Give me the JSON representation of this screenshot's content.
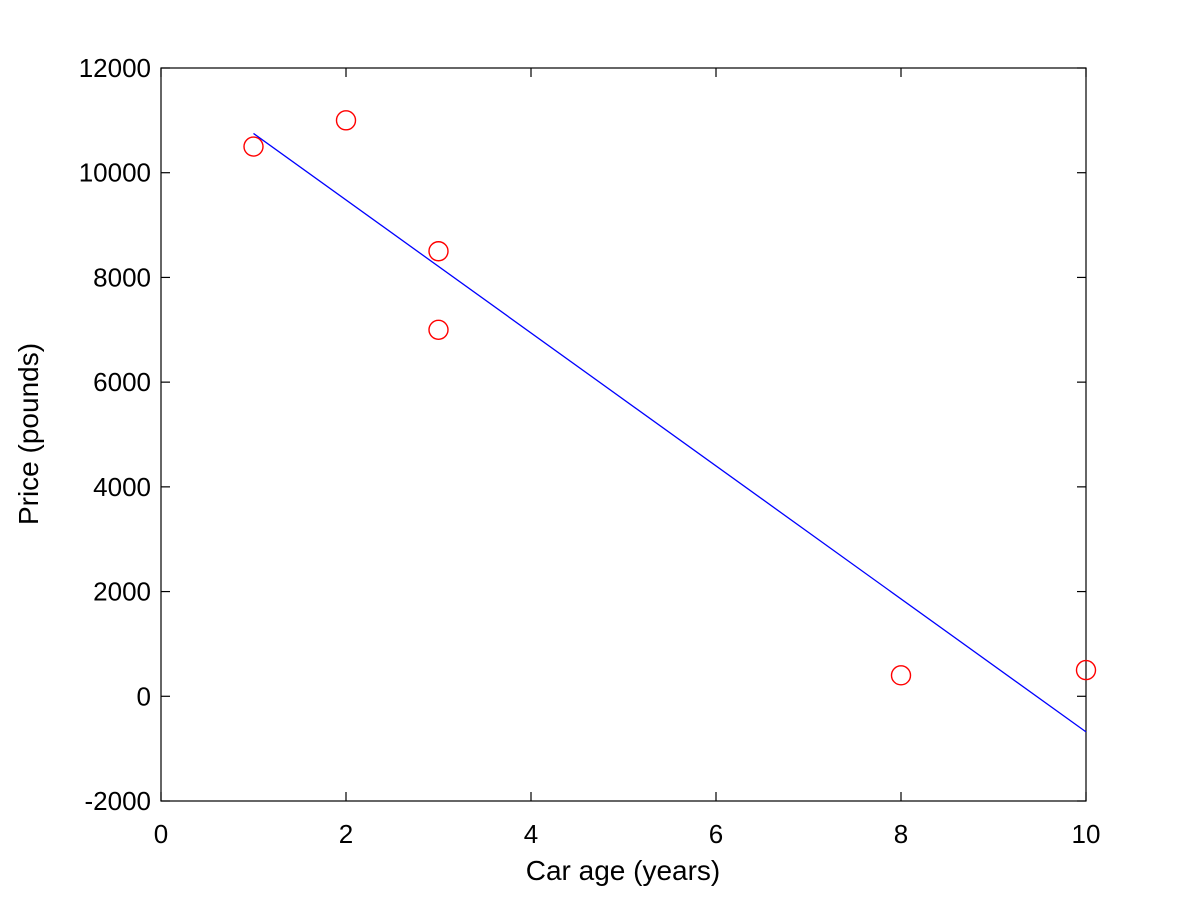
{
  "chart_data": {
    "type": "scatter",
    "title": "",
    "xlabel": "Car age (years)",
    "ylabel": "Price (pounds)",
    "xlim": [
      0,
      10
    ],
    "ylim": [
      -2000,
      12000
    ],
    "xticks": [
      0,
      2,
      4,
      6,
      8,
      10
    ],
    "xtick_labels": [
      "0",
      "2",
      "4",
      "6",
      "8",
      "10"
    ],
    "yticks": [
      -2000,
      0,
      2000,
      4000,
      6000,
      8000,
      10000,
      12000
    ],
    "ytick_labels": [
      "-2000",
      "0",
      "2000",
      "4000",
      "6000",
      "8000",
      "10000",
      "12000"
    ],
    "grid": false,
    "legend": "none",
    "series": [
      {
        "kind": "scatter",
        "marker": "open-circle",
        "color": "#ff0000",
        "points": [
          {
            "x": 1,
            "y": 10500
          },
          {
            "x": 2,
            "y": 11000
          },
          {
            "x": 3,
            "y": 8500
          },
          {
            "x": 3,
            "y": 7000
          },
          {
            "x": 8,
            "y": 400
          },
          {
            "x": 10,
            "y": 500
          }
        ]
      },
      {
        "kind": "line",
        "color": "#0000ff",
        "points": [
          {
            "x": 1,
            "y": 10750
          },
          {
            "x": 10,
            "y": -680
          }
        ]
      }
    ]
  }
}
